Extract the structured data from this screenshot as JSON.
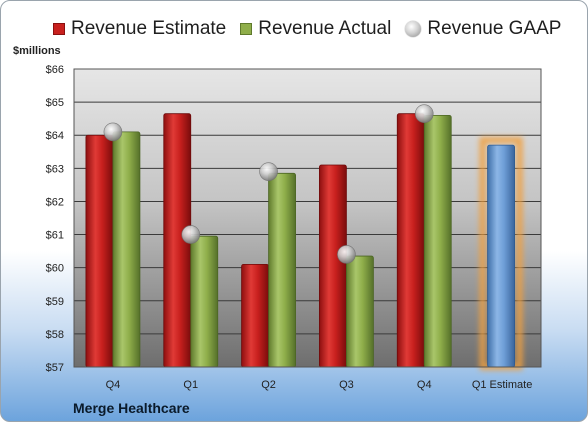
{
  "legend": {
    "estimate_label": "Revenue Estimate",
    "actual_label": "Revenue Actual",
    "gaap_label": "Revenue GAAP"
  },
  "unit_label": "$millions",
  "company": "Merge Healthcare",
  "colors": {
    "estimate": "#c8201e",
    "actual": "#8fae4a",
    "forecast": "#6f9fd8",
    "forecast_glow": "#f0a040",
    "gaap_marker": "#c0c0c0"
  },
  "chart_data": {
    "type": "bar",
    "categories": [
      "Q4",
      "Q1",
      "Q2",
      "Q3",
      "Q4",
      "Q1 Estimate"
    ],
    "series": [
      {
        "name": "Revenue Estimate",
        "values": [
          64.0,
          64.65,
          60.1,
          63.1,
          64.65,
          63.7
        ]
      },
      {
        "name": "Revenue Actual",
        "values": [
          64.1,
          60.95,
          62.85,
          60.35,
          64.6,
          null
        ]
      },
      {
        "name": "Revenue GAAP",
        "type": "scatter",
        "values": [
          64.1,
          61.0,
          62.9,
          60.4,
          64.65,
          null
        ]
      }
    ],
    "ylim": [
      57,
      66
    ],
    "yticks": [
      "$57",
      "$58",
      "$59",
      "$60",
      "$61",
      "$62",
      "$63",
      "$64",
      "$65",
      "$66"
    ],
    "ylabel": "$millions",
    "xlabel": "",
    "grid": true,
    "legend_position": "top"
  }
}
